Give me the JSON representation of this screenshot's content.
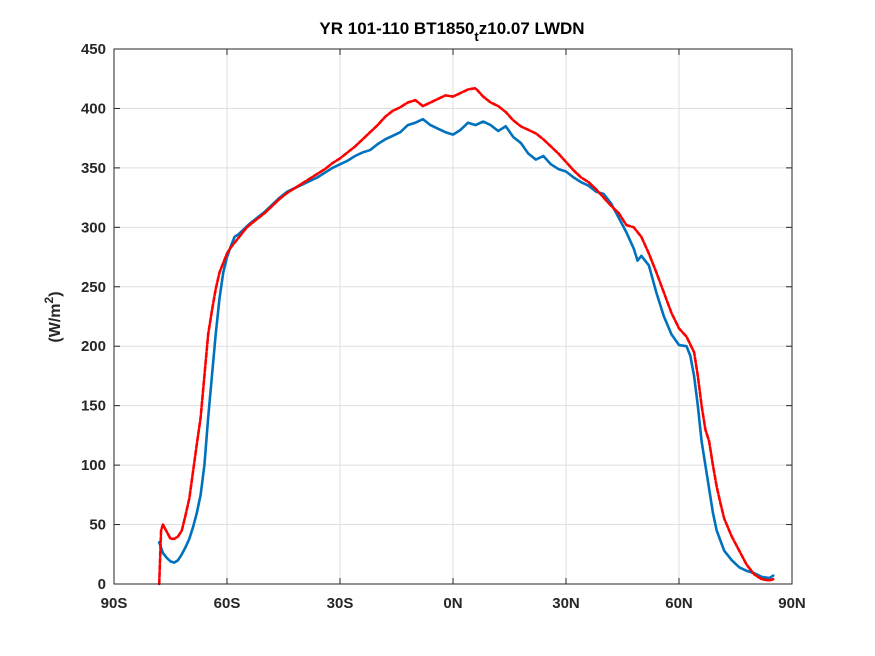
{
  "chart_data": {
    "type": "line",
    "title": "YR 101-110 BT1850",
    "title_subscript": "t",
    "title_suffix": "z10.07 LWDN",
    "xlabel": "",
    "ylabel": "(W/m",
    "ylabel_superscript": "2",
    "ylabel_suffix": ")",
    "xlim": [
      -90,
      90
    ],
    "ylim": [
      0,
      450
    ],
    "grid": true,
    "x_ticks": [
      -90,
      -60,
      -30,
      0,
      30,
      60,
      90
    ],
    "x_tick_labels": [
      "90S",
      "60S",
      "30S",
      "0N",
      "30N",
      "60N",
      "90N"
    ],
    "y_ticks": [
      0,
      50,
      100,
      150,
      200,
      250,
      300,
      350,
      400,
      450
    ],
    "y_tick_labels": [
      "0",
      "50",
      "100",
      "150",
      "200",
      "250",
      "300",
      "350",
      "400",
      "450"
    ],
    "series": [
      {
        "color": "#0072BD",
        "style": "solid",
        "x": [
          -78,
          -77,
          -76,
          -75,
          -74,
          -73,
          -72,
          -71,
          -70,
          -69,
          -68,
          -67,
          -66,
          -65,
          -64,
          -63,
          -62,
          -61,
          -60,
          -59,
          -58,
          -57,
          -56,
          -55,
          -54,
          -52,
          -50,
          -48,
          -46,
          -44,
          -42,
          -40,
          -38,
          -36,
          -34,
          -32,
          -30,
          -28,
          -26,
          -24,
          -22,
          -20,
          -18,
          -16,
          -14,
          -12,
          -10,
          -8,
          -6,
          -4,
          -2,
          0,
          2,
          4,
          6,
          8,
          10,
          12,
          14,
          16,
          18,
          20,
          22,
          24,
          26,
          28,
          30,
          32,
          34,
          36,
          38,
          40,
          42,
          44,
          46,
          48,
          49,
          50,
          52,
          54,
          56,
          58,
          60,
          62,
          63,
          64,
          65,
          66,
          67,
          68,
          69,
          70,
          72,
          74,
          76,
          78,
          80,
          82,
          84,
          85
        ],
        "values": [
          35,
          26,
          22,
          19,
          18,
          20,
          25,
          31,
          38,
          48,
          60,
          75,
          100,
          140,
          175,
          210,
          240,
          262,
          275,
          284,
          292,
          294,
          297,
          300,
          303,
          308,
          313,
          319,
          325,
          330,
          333,
          336,
          339,
          342,
          346,
          350,
          353,
          356,
          360,
          363,
          365,
          370,
          374,
          377,
          380,
          386,
          388,
          391,
          386,
          383,
          380,
          378,
          382,
          388,
          386,
          389,
          386,
          381,
          385,
          376,
          371,
          362,
          357,
          360,
          353,
          349,
          347,
          342,
          338,
          335,
          330,
          328,
          320,
          308,
          296,
          282,
          272,
          276,
          268,
          245,
          225,
          210,
          201,
          200,
          192,
          175,
          150,
          120,
          100,
          80,
          60,
          45,
          28,
          20,
          14,
          11,
          9,
          6,
          5,
          7
        ]
      },
      {
        "color": "#FF0000",
        "style": "dashed",
        "x": [
          -78,
          -77.5,
          -77,
          -76,
          -75,
          -74,
          -73,
          -72,
          -71,
          -70,
          -69,
          -68,
          -67,
          -66,
          -65,
          -64,
          -63,
          -62,
          -61,
          -60,
          -59,
          -58,
          -57,
          -56,
          -55,
          -54,
          -52,
          -50,
          -48,
          -46,
          -44,
          -42,
          -40,
          -38,
          -36,
          -34,
          -32,
          -30,
          -28,
          -26,
          -24,
          -22,
          -20,
          -18,
          -16,
          -14,
          -12,
          -10,
          -8,
          -6,
          -4,
          -2,
          0,
          2,
          4,
          6,
          8,
          10,
          12,
          14,
          16,
          18,
          20,
          22,
          24,
          26,
          28,
          30,
          32,
          34,
          36,
          38,
          40,
          42,
          44,
          46,
          48,
          50,
          52,
          54,
          56,
          58,
          60,
          62,
          64,
          65,
          66,
          67,
          68,
          69,
          70,
          71,
          72,
          74,
          76,
          78,
          80,
          82,
          84,
          85
        ],
        "values": [
          0,
          45,
          50,
          44,
          38,
          38,
          40,
          45,
          58,
          72,
          95,
          118,
          140,
          175,
          210,
          230,
          248,
          262,
          270,
          278,
          283,
          287,
          291,
          295,
          299,
          302,
          307,
          312,
          318,
          324,
          329,
          333,
          337,
          341,
          345,
          349,
          354,
          358,
          363,
          368,
          374,
          380,
          386,
          393,
          398,
          401,
          405,
          407,
          402,
          405,
          408,
          411,
          410,
          413,
          416,
          417,
          410,
          405,
          402,
          397,
          390,
          385,
          382,
          379,
          374,
          368,
          362,
          355,
          348,
          342,
          338,
          332,
          325,
          318,
          312,
          302,
          300,
          292,
          278,
          262,
          245,
          228,
          215,
          208,
          195,
          175,
          150,
          130,
          120,
          100,
          82,
          68,
          55,
          40,
          28,
          16,
          8,
          4,
          3,
          4
        ]
      }
    ]
  }
}
